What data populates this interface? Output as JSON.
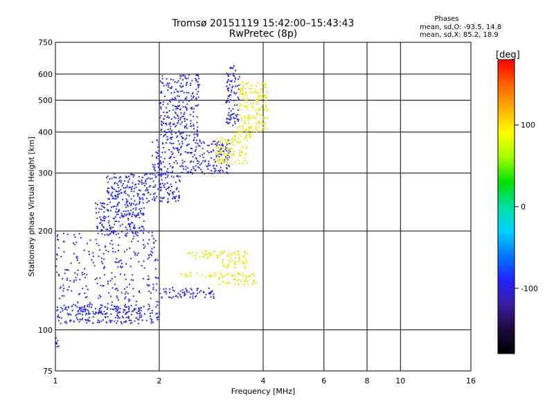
{
  "chart_data": {
    "type": "scatter",
    "title": "Tromsø 20151119 15:42:00–15:43:43",
    "subtitle": "RwPretec (8p)",
    "xlabel": "Frequency [MHz]",
    "ylabel": "Stationary phase Virtual Height [km]",
    "x_scale": "log",
    "y_scale": "log",
    "xlim": [
      1,
      16
    ],
    "ylim": [
      75,
      750
    ],
    "x_ticks": [
      1,
      2,
      4,
      6,
      8,
      10,
      16
    ],
    "y_ticks": [
      75,
      100,
      200,
      300,
      400,
      500,
      600,
      750
    ],
    "grid": true,
    "phase_stats": {
      "heading": "Phases",
      "o_mode": "mean, sd,O: -93.5, 14.8",
      "x_mode": "mean, sd,X:  85.2, 18.9"
    },
    "colorbar": {
      "label": "[deg]",
      "range": [
        -180,
        180
      ],
      "ticks": [
        100,
        0,
        -100
      ],
      "colors": [
        "#000000",
        "#1e0a40",
        "#3a1ca0",
        "#2222ff",
        "#0078ff",
        "#00d0ff",
        "#00e0a0",
        "#00e000",
        "#a0ff00",
        "#ffff00",
        "#ffb000",
        "#ff6000",
        "#ff0000"
      ]
    },
    "series": [
      {
        "mode": "O",
        "color": "#2a2aee",
        "clusters": [
          {
            "x": [
              1.0,
              2.0
            ],
            "y": [
              105,
              120
            ]
          },
          {
            "x": [
              1.0,
              2.0
            ],
            "y": [
              120,
              200
            ]
          },
          {
            "x": [
              2.0,
              2.9
            ],
            "y": [
              125,
              135
            ]
          },
          {
            "x": [
              1.15,
              1.55
            ],
            "y": [
              112,
              118
            ]
          },
          {
            "x": [
              1.3,
              1.8
            ],
            "y": [
              195,
              245
            ]
          },
          {
            "x": [
              1.4,
              2.3
            ],
            "y": [
              245,
              300
            ]
          },
          {
            "x": [
              1.9,
              3.2
            ],
            "y": [
              300,
              380
            ]
          },
          {
            "x": [
              2.0,
              2.6
            ],
            "y": [
              380,
              600
            ]
          },
          {
            "x": [
              3.1,
              3.4
            ],
            "y": [
              420,
              640
            ]
          },
          {
            "x": [
              0.98,
              1.02
            ],
            "y": [
              88,
              98
            ]
          }
        ]
      },
      {
        "mode": "X",
        "color": "#e8e800",
        "clusters": [
          {
            "x": [
              2.9,
              3.8
            ],
            "y": [
              138,
              150
            ]
          },
          {
            "x": [
              2.3,
              2.9
            ],
            "y": [
              145,
              150
            ]
          },
          {
            "x": [
              3.0,
              3.6
            ],
            "y": [
              155,
              175
            ]
          },
          {
            "x": [
              2.4,
              3.0
            ],
            "y": [
              165,
              175
            ]
          },
          {
            "x": [
              2.9,
              3.6
            ],
            "y": [
              320,
              390
            ]
          },
          {
            "x": [
              3.4,
              4.1
            ],
            "y": [
              400,
              570
            ]
          },
          {
            "x": [
              3.3,
              3.7
            ],
            "y": [
              380,
              420
            ]
          }
        ]
      }
    ]
  }
}
